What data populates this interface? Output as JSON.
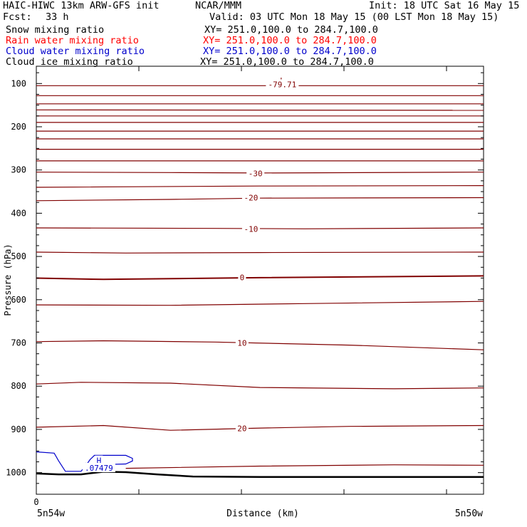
{
  "header": {
    "title_left": "HAIC-HIWC 13km ARW-GFS init",
    "org": "NCAR/MMM",
    "init": "Init: 18 UTC Sat 16 May 15",
    "fcst_label": "Fcst:",
    "fcst_value": "33 h",
    "valid": "Valid: 03 UTC Mon 18 May 15 (00 LST Mon 18 May 15)"
  },
  "fields": [
    {
      "name": "Snow mixing ratio",
      "xy": "XY= 251.0,100.0 to 284.7,100.0",
      "color": "#000000"
    },
    {
      "name": "Rain water mixing ratio",
      "xy": "XY= 251.0,100.0 to 284.7,100.0",
      "color": "#ff0000"
    },
    {
      "name": "Cloud water mixing ratio",
      "xy": "XY= 251.0,100.0 to 284.7,100.0",
      "color": "#0000cc"
    },
    {
      "name": "Cloud ice mixing ratio",
      "xy": "XY= 251.0,100.0 to 284.7,100.0",
      "color": "#000000"
    }
  ],
  "chart_data": {
    "type": "line",
    "title": "HAIC-HIWC 13km ARW-GFS init",
    "xlabel": "Distance (km)",
    "ylabel": "Pressure (hPa)",
    "y_ticks": [
      "100",
      "200",
      "300",
      "400",
      "500",
      "600",
      "700",
      "800",
      "900",
      "1000"
    ],
    "x_ticks": [
      "0"
    ],
    "x_endpoints": {
      "left": "5n54w",
      "right": "5n50w"
    },
    "ylim": [
      1050,
      60
    ],
    "isotherm_color": "#800000",
    "contour_labels": [
      {
        "text": "L",
        "x": 0.55,
        "p": 93,
        "color": "#800000"
      },
      {
        "text": "-79.71",
        "x": 0.55,
        "p": 102,
        "color": "#800000"
      },
      {
        "text": "-30",
        "x": 0.49,
        "p": 308,
        "color": "#800000"
      },
      {
        "text": "-20",
        "x": 0.48,
        "p": 364,
        "color": "#800000"
      },
      {
        "text": "-10",
        "x": 0.48,
        "p": 436,
        "color": "#800000"
      },
      {
        "text": "0",
        "x": 0.46,
        "p": 548,
        "color": "#800000"
      },
      {
        "text": "10",
        "x": 0.46,
        "p": 700,
        "color": "#800000"
      },
      {
        "text": "20",
        "x": 0.46,
        "p": 898,
        "color": "#800000"
      },
      {
        "text": "H",
        "x": 0.14,
        "p": 972,
        "color": "#0000cc"
      },
      {
        "text": ".07479",
        "x": 0.14,
        "p": 989,
        "color": "#0000cc"
      }
    ],
    "isotherms": [
      {
        "x": [
          0,
          1
        ],
        "p": [
          105,
          105
        ]
      },
      {
        "x": [
          0,
          1
        ],
        "p": [
          128,
          128
        ]
      },
      {
        "x": [
          0,
          1
        ],
        "p": [
          147,
          147
        ]
      },
      {
        "x": [
          0,
          1
        ],
        "p": [
          161,
          162
        ]
      },
      {
        "x": [
          0,
          1
        ],
        "p": [
          175,
          175
        ]
      },
      {
        "x": [
          0,
          1
        ],
        "p": [
          190,
          190
        ]
      },
      {
        "x": [
          0,
          1
        ],
        "p": [
          210,
          210
        ]
      },
      {
        "x": [
          0,
          1
        ],
        "p": [
          228,
          228
        ]
      },
      {
        "x": [
          0,
          1
        ],
        "p": [
          252,
          252
        ]
      },
      {
        "x": [
          0,
          1
        ],
        "p": [
          279,
          279
        ]
      },
      {
        "x": [
          0,
          0.3,
          0.5,
          1
        ],
        "p": [
          305,
          306,
          307,
          305
        ]
      },
      {
        "x": [
          0,
          0.5,
          1
        ],
        "p": [
          340,
          337,
          336
        ]
      },
      {
        "x": [
          0,
          0.3,
          0.5,
          1
        ],
        "p": [
          371,
          368,
          365,
          364
        ]
      },
      {
        "x": [
          0,
          0.4,
          0.6,
          1
        ],
        "p": [
          434,
          435,
          436,
          434
        ]
      },
      {
        "x": [
          0,
          0.2,
          0.5,
          1
        ],
        "p": [
          490,
          492,
          491,
          490
        ]
      },
      {
        "x": [
          0,
          0.15,
          0.5,
          1
        ],
        "p": [
          550,
          553,
          549,
          545
        ]
      },
      {
        "x": [
          0,
          0.3,
          0.6,
          1
        ],
        "p": [
          612,
          613,
          609,
          604
        ]
      },
      {
        "x": [
          0,
          0.15,
          0.4,
          0.7,
          1
        ],
        "p": [
          697,
          695,
          698,
          705,
          716
        ]
      },
      {
        "x": [
          0,
          0.1,
          0.3,
          0.5,
          0.8,
          1
        ],
        "p": [
          795,
          791,
          793,
          803,
          806,
          804
        ]
      },
      {
        "x": [
          0,
          0.15,
          0.3,
          0.5,
          0.7,
          1
        ],
        "p": [
          895,
          891,
          902,
          897,
          893,
          891
        ]
      },
      {
        "x": [
          0.2,
          0.5,
          0.8,
          1
        ],
        "p": [
          990,
          985,
          982,
          983
        ]
      }
    ],
    "terrain": {
      "x": [
        0,
        0.05,
        0.1,
        0.15,
        0.2,
        0.27,
        0.35,
        0.5,
        0.75,
        1
      ],
      "p": [
        1002,
        1004,
        1004,
        998,
        999,
        1004,
        1009,
        1010,
        1010,
        1010
      ],
      "color": "#000000"
    },
    "cloud_water_contour": {
      "x": [
        0,
        0.04,
        0.05,
        0.065,
        0.1,
        0.11,
        0.12,
        0.13,
        0.2,
        0.215,
        0.215,
        0.2,
        0.13,
        0.11
      ],
      "p": [
        952,
        955,
        973,
        997,
        997,
        985,
        970,
        960,
        960,
        967,
        973,
        980,
        982,
        978
      ],
      "color": "#0000cc"
    }
  }
}
